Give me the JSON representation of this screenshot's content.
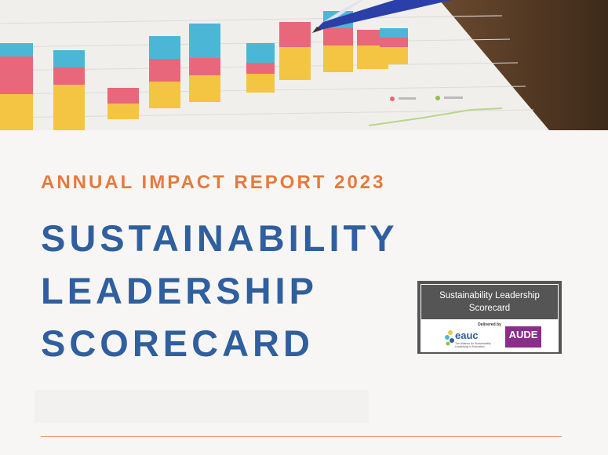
{
  "report": {
    "subtitle": "ANNUAL IMPACT REPORT 2023",
    "title_lines": [
      "SUSTAINABILITY",
      "LEADERSHIP",
      "SCORECARD"
    ]
  },
  "badge": {
    "heading": "Sustainability Leadership Scorecard",
    "delivered_by": "Delivered by",
    "eauc": {
      "name": "eauc",
      "tagline": "The Alliance for Sustainability Leadership in Education"
    },
    "aude": {
      "name": "AUDE"
    }
  },
  "colors": {
    "accent_orange": "#e67a3c",
    "title_blue": "#2f5f9e",
    "bar_red": "#e8677a",
    "bar_blue": "#4cb6d6",
    "bar_yellow": "#f4c542",
    "aude_purple": "#8b2d8b"
  },
  "hero_image": {
    "icon": "bar-chart-photo-with-pen"
  }
}
